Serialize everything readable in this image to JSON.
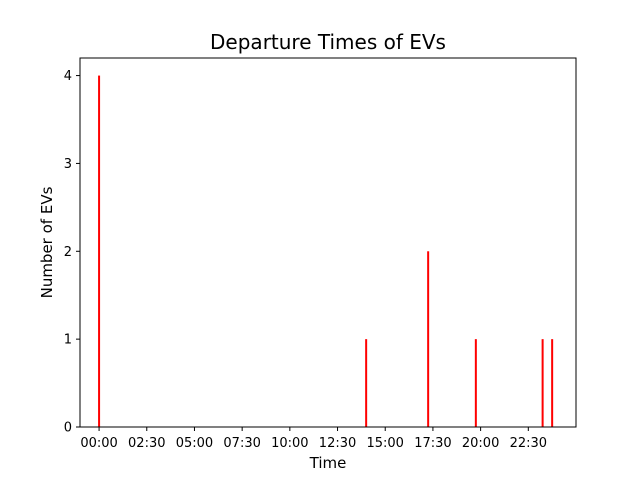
{
  "chart_data": {
    "type": "bar",
    "title": "Departure Times of EVs",
    "xlabel": "Time",
    "ylabel": "Number of EVs",
    "x_unit": "HH:MM",
    "xlim": [
      "-01:00",
      "25:00"
    ],
    "ylim": [
      0,
      4.2
    ],
    "x_ticks": [
      "00:00",
      "02:30",
      "05:00",
      "07:30",
      "10:00",
      "12:30",
      "15:00",
      "17:30",
      "20:00",
      "22:30"
    ],
    "y_ticks": [
      0,
      1,
      2,
      3,
      4
    ],
    "bar_color": "#ff0000",
    "grid": false,
    "x": [
      "00:00",
      "14:00",
      "17:15",
      "19:45",
      "23:15",
      "23:45"
    ],
    "values": [
      4,
      1,
      2,
      1,
      1,
      1
    ]
  }
}
